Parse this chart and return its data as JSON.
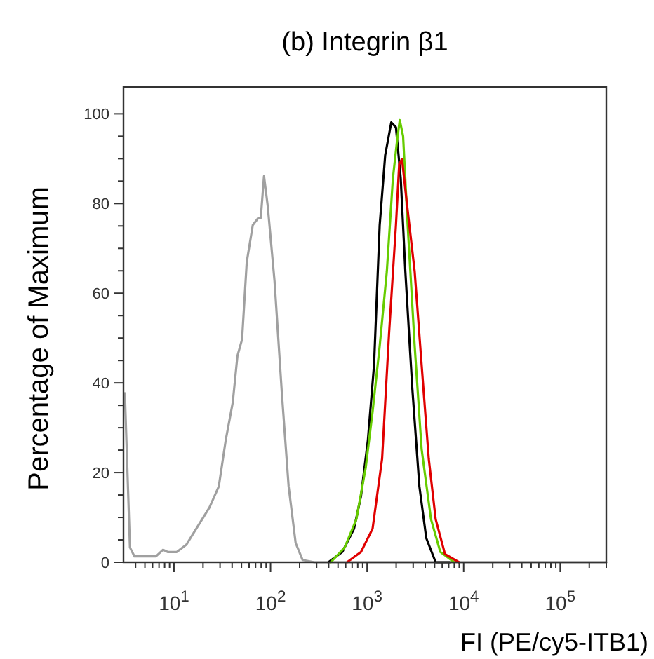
{
  "chart_data": {
    "type": "line",
    "title": "(b) Integrin β1",
    "xlabel": "FI (PE/cy5-ITB1)",
    "ylabel": "Percentage of Maximum",
    "log": "x",
    "grid": false,
    "line_style": "solid",
    "xlim": [
      3,
      300000
    ],
    "ylim": [
      0,
      106
    ],
    "xticks": [
      {
        "value": 4,
        "label": null
      },
      {
        "value": 5,
        "label": null
      },
      {
        "value": 6,
        "label": null
      },
      {
        "value": 7,
        "label": null
      },
      {
        "value": 8,
        "label": null
      },
      {
        "value": 9,
        "label": null
      },
      {
        "value": 10,
        "label": "10$^{1}$"
      },
      {
        "value": 20,
        "label": null
      },
      {
        "value": 30,
        "label": null
      },
      {
        "value": 40,
        "label": null
      },
      {
        "value": 50,
        "label": null
      },
      {
        "value": 60,
        "label": null
      },
      {
        "value": 70,
        "label": null
      },
      {
        "value": 80,
        "label": null
      },
      {
        "value": 90,
        "label": null
      },
      {
        "value": 100,
        "label": "10$^{2}$"
      },
      {
        "value": 200,
        "label": null
      },
      {
        "value": 300,
        "label": null
      },
      {
        "value": 400,
        "label": null
      },
      {
        "value": 500,
        "label": null
      },
      {
        "value": 600,
        "label": null
      },
      {
        "value": 700,
        "label": null
      },
      {
        "value": 800,
        "label": null
      },
      {
        "value": 900,
        "label": null
      },
      {
        "value": 1000,
        "label": "10$^{3}$"
      },
      {
        "value": 2000,
        "label": null
      },
      {
        "value": 3000,
        "label": null
      },
      {
        "value": 4000,
        "label": null
      },
      {
        "value": 5000,
        "label": null
      },
      {
        "value": 6000,
        "label": null
      },
      {
        "value": 7000,
        "label": null
      },
      {
        "value": 8000,
        "label": null
      },
      {
        "value": 9000,
        "label": null
      },
      {
        "value": 10000,
        "label": "10$^{4}$"
      },
      {
        "value": 20000,
        "label": null
      },
      {
        "value": 30000,
        "label": null
      },
      {
        "value": 40000,
        "label": null
      },
      {
        "value": 50000,
        "label": null
      },
      {
        "value": 60000,
        "label": null
      },
      {
        "value": 70000,
        "label": null
      },
      {
        "value": 80000,
        "label": null
      },
      {
        "value": 90000,
        "label": null
      },
      {
        "value": 100000,
        "label": "10$^{5}$"
      },
      {
        "value": 200000,
        "label": null
      },
      {
        "value": 300000,
        "label": null
      }
    ],
    "yticks": [
      0,
      {
        "value": 5,
        "label": null
      },
      {
        "value": 10,
        "label": null
      },
      {
        "value": 15,
        "label": null
      },
      20,
      {
        "value": 25,
        "label": null
      },
      {
        "value": 30,
        "label": null
      },
      {
        "value": 35,
        "label": null
      },
      40,
      {
        "value": 45,
        "label": null
      },
      {
        "value": 50,
        "label": null
      },
      {
        "value": 55,
        "label": null
      },
      60,
      {
        "value": 65,
        "label": null
      },
      {
        "value": 70,
        "label": null
      },
      {
        "value": 75,
        "label": null
      },
      80,
      {
        "value": 85,
        "label": null
      },
      {
        "value": 90,
        "label": null
      },
      {
        "value": 95,
        "label": null
      },
      100
    ],
    "series": [
      {
        "color": "#a0a0a0",
        "x": [
          3.1,
          3.5,
          3.9,
          6.5,
          7.7,
          8.6,
          10.7,
          13.4,
          17.6,
          23.3,
          29.1,
          34.4,
          40.6,
          45.4,
          50.7,
          56.7,
          65.5,
          74.8,
          79.2,
          85.6,
          93.6,
          110,
          131,
          154,
          182,
          215,
          285,
          300000
        ],
        "values": [
          37.7,
          3.3,
          1.3,
          1.3,
          2.8,
          2.3,
          2.3,
          3.9,
          8.0,
          12.2,
          16.9,
          27.3,
          35.6,
          46,
          49.7,
          66.9,
          75.2,
          76.8,
          76.8,
          86.1,
          79.4,
          62.7,
          37.7,
          16.9,
          4.3,
          0.5,
          0,
          0
        ]
      },
      {
        "color": "#000000",
        "x": [
          397,
          554,
          733,
          865,
          1020,
          1180,
          1350,
          1540,
          1780,
          1990,
          2230,
          2490,
          2940,
          3480,
          4100,
          5130,
          7160
        ],
        "values": [
          0,
          2.3,
          7.5,
          14.8,
          27.3,
          44,
          75.2,
          90.8,
          98.1,
          97,
          85.6,
          64.8,
          38.7,
          16.9,
          5.4,
          0,
          0
        ]
      },
      {
        "color": "#66cc00",
        "x": [
          420,
          586,
          774,
          968,
          1140,
          1350,
          1600,
          1850,
          2040,
          2180,
          2360,
          2630,
          3110,
          3670,
          4590,
          5730,
          8000
        ],
        "values": [
          0,
          3.3,
          9.6,
          21.1,
          33.6,
          48.2,
          64.8,
          85.6,
          93.9,
          98.6,
          95,
          75.2,
          48.2,
          25.2,
          9.6,
          2.3,
          0
        ]
      },
      {
        "color": "#e00000",
        "x": [
          620,
          865,
          1140,
          1430,
          1690,
          1990,
          2150,
          2300,
          2570,
          3110,
          3670,
          4350,
          5130,
          6410,
          8960
        ],
        "values": [
          0,
          2.3,
          7.5,
          23.1,
          51.2,
          75.2,
          88.8,
          89.9,
          80.4,
          64.8,
          44,
          23.1,
          9.6,
          1.8,
          0
        ]
      }
    ]
  }
}
